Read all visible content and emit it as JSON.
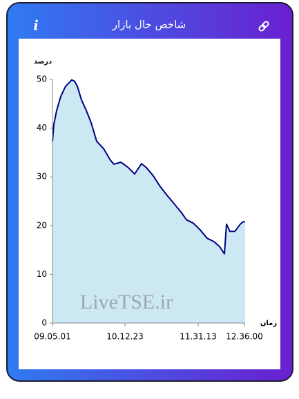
{
  "header": {
    "title": "شاخص حال بازار"
  },
  "watermark": "LiveTSE.ir",
  "chart_data": {
    "type": "area",
    "y_label": "درصد",
    "x_label": "زمان",
    "x": [
      0,
      2,
      6,
      12,
      19,
      24,
      28,
      32,
      36,
      42,
      49,
      56,
      64,
      74,
      84,
      89,
      99,
      109,
      119,
      129,
      136,
      146,
      156,
      166,
      176,
      186,
      194,
      204,
      214,
      224,
      234,
      242,
      249,
      252,
      257,
      264,
      272,
      276,
      279
    ],
    "series": [
      {
        "name": "شاخص",
        "color": "#000080",
        "fill": "#cce8f2",
        "values": [
          37.3,
          40.8,
          43.6,
          46.5,
          48.6,
          49.3,
          49.9,
          49.6,
          48.6,
          45.8,
          43.6,
          41.1,
          37.3,
          35.8,
          33.4,
          32.6,
          33.0,
          32.0,
          30.6,
          32.7,
          31.9,
          30.2,
          28.0,
          26.2,
          24.5,
          22.8,
          21.2,
          20.5,
          19.1,
          17.4,
          16.7,
          15.7,
          14.2,
          20.3,
          18.8,
          18.8,
          20.3,
          20.8,
          20.8
        ]
      }
    ],
    "xlim": [
      0,
      279
    ],
    "ylim": [
      0,
      50
    ],
    "xticks": [
      {
        "value": 0,
        "label": "09.05.01"
      },
      {
        "value": 105,
        "label": "10.12.23"
      },
      {
        "value": 211,
        "label": "11.31.13"
      },
      {
        "value": 278,
        "label": "12.36.00"
      }
    ],
    "yticks": [
      0,
      10,
      20,
      30,
      40,
      50
    ]
  }
}
